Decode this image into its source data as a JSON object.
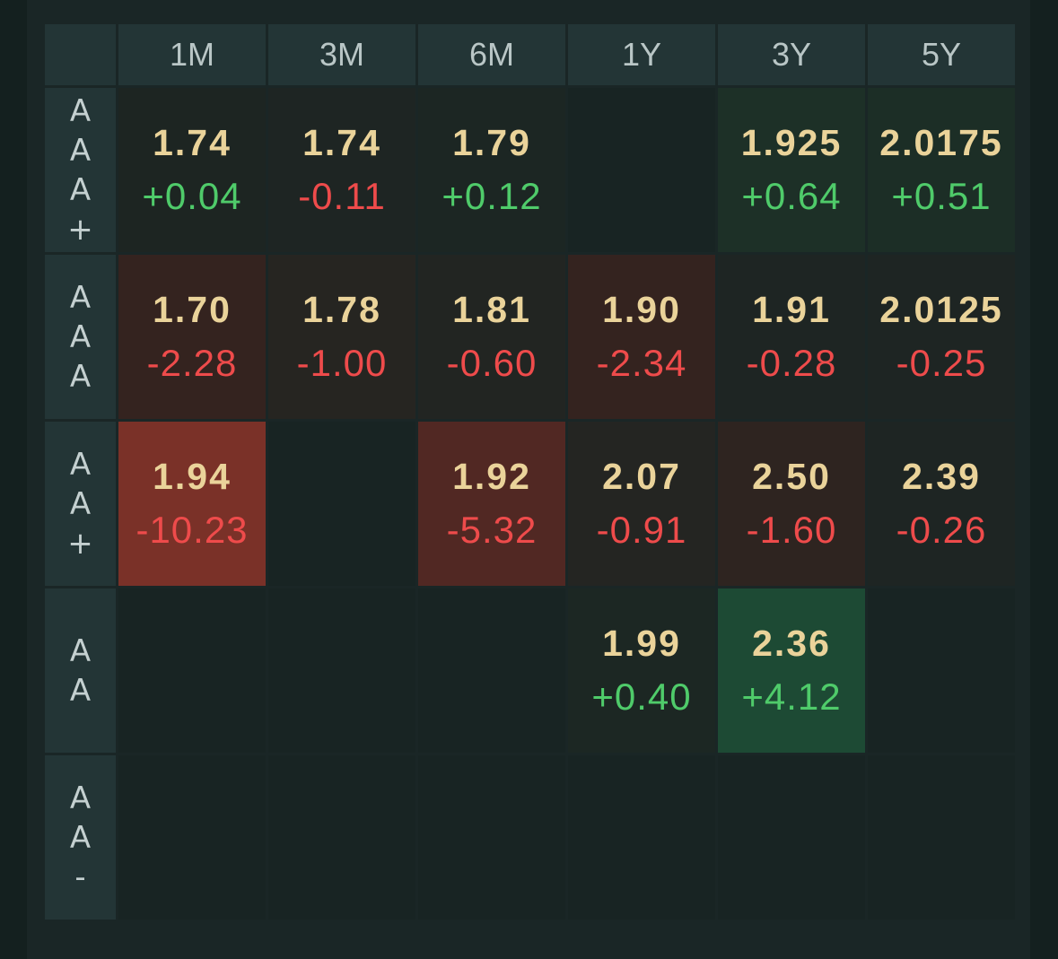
{
  "columns": [
    "1M",
    "3M",
    "6M",
    "1Y",
    "3Y",
    "5Y"
  ],
  "rows": [
    {
      "label": "A\nA\nA\n+",
      "cells": [
        {
          "value": "1.74",
          "change": "+0.04",
          "dir": "pos",
          "bg": "#1d2522"
        },
        {
          "value": "1.74",
          "change": "-0.11",
          "dir": "neg",
          "bg": "#1e2523"
        },
        {
          "value": "1.79",
          "change": "+0.12",
          "dir": "pos",
          "bg": "#1c2623"
        },
        {
          "value": "",
          "change": "",
          "dir": "",
          "bg": "#182423"
        },
        {
          "value": "1.925",
          "change": "+0.64",
          "dir": "pos",
          "bg": "#1d3027"
        },
        {
          "value": "2.0175",
          "change": "+0.51",
          "dir": "pos",
          "bg": "#1c2e26"
        }
      ]
    },
    {
      "label": "A\nA\nA",
      "cells": [
        {
          "value": "1.70",
          "change": "-2.28",
          "dir": "neg",
          "bg": "#34231f"
        },
        {
          "value": "1.78",
          "change": "-1.00",
          "dir": "neg",
          "bg": "#262521"
        },
        {
          "value": "1.81",
          "change": "-0.60",
          "dir": "neg",
          "bg": "#222522"
        },
        {
          "value": "1.90",
          "change": "-2.34",
          "dir": "neg",
          "bg": "#34231f"
        },
        {
          "value": "1.91",
          "change": "-0.28",
          "dir": "neg",
          "bg": "#1e2523"
        },
        {
          "value": "2.0125",
          "change": "-0.25",
          "dir": "neg",
          "bg": "#1e2523"
        }
      ]
    },
    {
      "label": "A\nA\n+",
      "cells": [
        {
          "value": "1.94",
          "change": "-10.23",
          "dir": "neg",
          "bg": "#7a3128"
        },
        {
          "value": "",
          "change": "",
          "dir": "",
          "bg": "#182423"
        },
        {
          "value": "1.92",
          "change": "-5.32",
          "dir": "neg",
          "bg": "#512823"
        },
        {
          "value": "2.07",
          "change": "-0.91",
          "dir": "neg",
          "bg": "#242522"
        },
        {
          "value": "2.50",
          "change": "-1.60",
          "dir": "neg",
          "bg": "#2e2420"
        },
        {
          "value": "2.39",
          "change": "-0.26",
          "dir": "neg",
          "bg": "#1e2523"
        }
      ]
    },
    {
      "label": "A\nA",
      "cells": [
        {
          "value": "",
          "change": "",
          "dir": "",
          "bg": "#182423"
        },
        {
          "value": "",
          "change": "",
          "dir": "",
          "bg": "#182423"
        },
        {
          "value": "",
          "change": "",
          "dir": "",
          "bg": "#182423"
        },
        {
          "value": "1.99",
          "change": "+0.40",
          "dir": "pos",
          "bg": "#1c2723"
        },
        {
          "value": "2.36",
          "change": "+4.12",
          "dir": "pos",
          "bg": "#1d4a34"
        },
        {
          "value": "",
          "change": "",
          "dir": "",
          "bg": "#182423"
        }
      ]
    },
    {
      "label": "A\nA\n-",
      "cells": [
        {
          "value": "",
          "change": "",
          "dir": "",
          "bg": "#182423"
        },
        {
          "value": "",
          "change": "",
          "dir": "",
          "bg": "#182423"
        },
        {
          "value": "",
          "change": "",
          "dir": "",
          "bg": "#182423"
        },
        {
          "value": "",
          "change": "",
          "dir": "",
          "bg": "#182423"
        },
        {
          "value": "",
          "change": "",
          "dir": "",
          "bg": "#182423"
        },
        {
          "value": "",
          "change": "",
          "dir": "",
          "bg": "#182423"
        }
      ]
    }
  ]
}
